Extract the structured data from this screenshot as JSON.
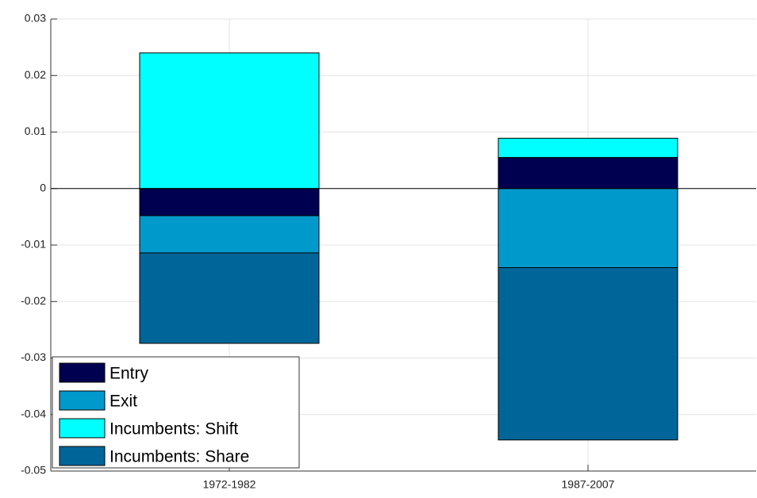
{
  "chart_data": {
    "type": "stacked_bar",
    "categories": [
      "1972-1982",
      "1987-2007"
    ],
    "series": [
      {
        "name": "Entry",
        "color": "#000050",
        "values": [
          -0.0048,
          0.0055
        ]
      },
      {
        "name": "Exit",
        "color": "#0099cc",
        "values": [
          -0.0066,
          -0.014
        ]
      },
      {
        "name": "Incumbents: Shift",
        "color": "#00ffff",
        "values": [
          0.024,
          0.0034
        ]
      },
      {
        "name": "Incumbents: Share",
        "color": "#006699",
        "values": [
          -0.016,
          -0.0305
        ]
      }
    ],
    "ylim": [
      -0.05,
      0.03
    ],
    "yticks": [
      -0.05,
      -0.04,
      -0.03,
      -0.02,
      -0.01,
      0,
      0.01,
      0.02,
      0.03
    ],
    "grid": true,
    "legend": "lower left"
  }
}
